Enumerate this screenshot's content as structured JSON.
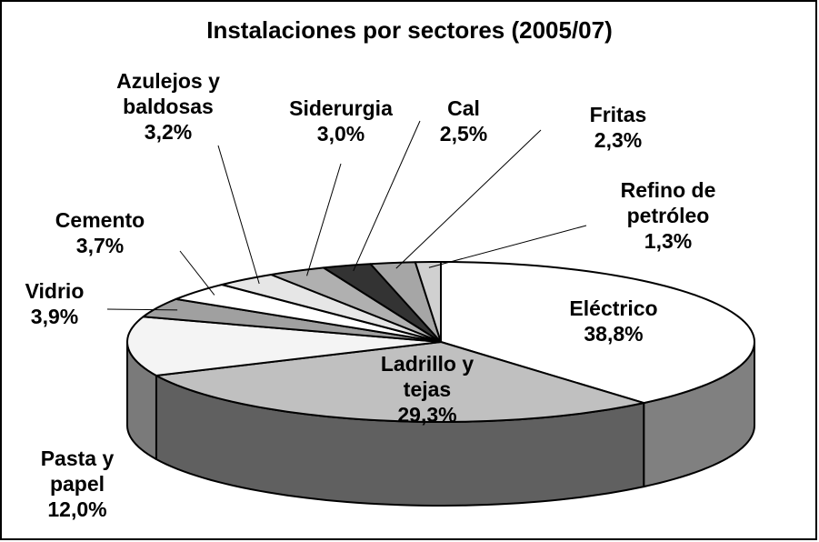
{
  "chart_data": {
    "type": "pie3d",
    "title": "Instalaciones por sectores (2005/07)",
    "categories": [
      "Eléctrico",
      "Ladrillo y tejas",
      "Pasta y papel",
      "Vidrio",
      "Cemento",
      "Azulejos y baldosas",
      "Siderurgia",
      "Cal",
      "Fritas",
      "Refino de petróleo"
    ],
    "values": [
      38.8,
      29.3,
      12.0,
      3.9,
      3.7,
      3.2,
      3.0,
      2.5,
      2.3,
      1.3
    ],
    "value_labels": [
      "38,8%",
      "29,3%",
      "12,0%",
      "3,9%",
      "3,7%",
      "3,2%",
      "3,0%",
      "2,5%",
      "2,3%",
      "1,3%"
    ],
    "colors": [
      "#ffffff",
      "#c0c0c0",
      "#f4f4f4",
      "#a0a0a0",
      "#ffffff",
      "#e6e6e6",
      "#b0b0b0",
      "#333333",
      "#a6a6a6",
      "#d0d0d0"
    ]
  }
}
